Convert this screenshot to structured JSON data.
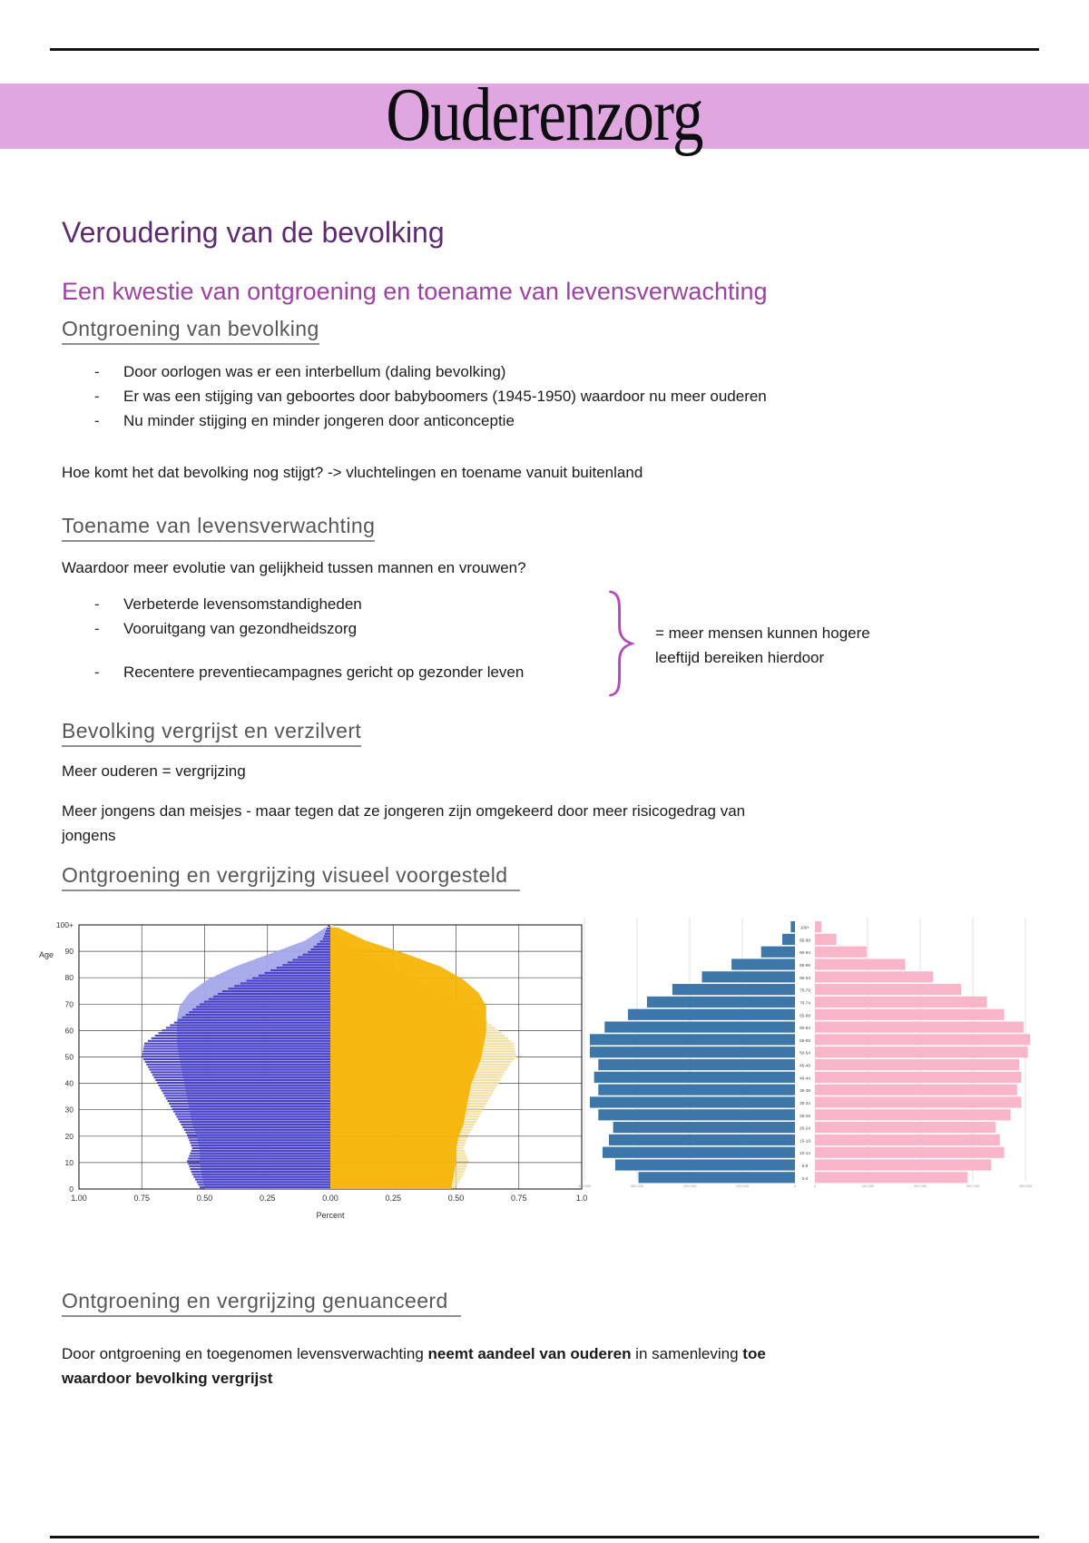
{
  "banner": {
    "title": "Ouderenzorg"
  },
  "headings": {
    "h1": "Veroudering van de bevolking",
    "h2": "Een kwestie van ontgroening en toename van levensverwachting",
    "s1": "Ontgroening van bevolking",
    "s2": "Toename van levensverwachting",
    "s3": "Bevolking vergrijst en verzilvert",
    "s4": "Ontgroening en vergrijzing visueel voorgesteld",
    "s5": "Ontgroening en vergrijzing genuanceerd"
  },
  "section1": {
    "bullets": [
      "Door oorlogen was er een interbellum (daling bevolking)",
      "Er was een stijging van geboortes door babyboomers (1945-1950) waardoor nu meer ouderen",
      "Nu minder stijging en minder jongeren door anticonceptie"
    ],
    "para": "Hoe komt het dat bevolking nog stijgt? -> vluchtelingen en toename vanuit buitenland"
  },
  "section2": {
    "intro": "Waardoor meer evolutie van gelijkheid tussen mannen en vrouwen?",
    "bullets": [
      "Verbeterde levensomstandigheden",
      "Vooruitgang van gezondheidszorg",
      "Recentere preventiecampagnes gericht op gezonder leven"
    ],
    "note_line1": "= meer mensen kunnen hogere",
    "note_line2": "leeftijd bereiken hierdoor",
    "brace_color": "#b44ab8"
  },
  "section3": {
    "para1": "Meer ouderen = vergrijzing",
    "para2_line1": "Meer jongens dan meisjes - maar tegen dat ze jongeren zijn omgekeerd door meer risicogedrag van",
    "para2_line2": "jongens"
  },
  "section5": {
    "segments": [
      {
        "text": "Door ontgroening en toegenomen levensverwachting ",
        "bold": false,
        "break": false
      },
      {
        "text": "neemt aandeel van ouderen",
        "bold": true,
        "break": false
      },
      {
        "text": " in samenleving ",
        "bold": false,
        "break": false
      },
      {
        "text": "toe",
        "bold": true,
        "break": true
      },
      {
        "text": "waardoor bevolking vergrijst",
        "bold": true,
        "break": false
      }
    ]
  },
  "chart_data": [
    {
      "type": "area",
      "subtype": "population-pyramid-overlay",
      "title": "",
      "xlabel": "Percent",
      "ylabel": "Age",
      "x_ticks": [
        "1.00",
        "0.75",
        "0.50",
        "0.25",
        "0.00",
        "0.25",
        "0.50",
        "0.75",
        "1.0"
      ],
      "y_ticks": [
        "0",
        "10",
        "20",
        "30",
        "40",
        "50",
        "60",
        "70",
        "80",
        "90",
        "100+"
      ],
      "xlim": [
        -1.0,
        1.0
      ],
      "grid": true,
      "ages": [
        0,
        5,
        10,
        15,
        20,
        25,
        30,
        35,
        40,
        45,
        50,
        55,
        60,
        65,
        70,
        75,
        80,
        85,
        90,
        95,
        100
      ],
      "series": [
        {
          "name": "male-current-hatched-bars",
          "side": "left",
          "color": "#4a42c7",
          "values": [
            0.52,
            0.55,
            0.57,
            0.55,
            0.57,
            0.6,
            0.63,
            0.66,
            0.69,
            0.72,
            0.75,
            0.74,
            0.67,
            0.59,
            0.52,
            0.43,
            0.31,
            0.19,
            0.09,
            0.03,
            0.01
          ]
        },
        {
          "name": "male-projection-area",
          "side": "left",
          "color": "#a4a7e9",
          "values": [
            0.5,
            0.51,
            0.52,
            0.52,
            0.53,
            0.55,
            0.56,
            0.57,
            0.58,
            0.59,
            0.6,
            0.61,
            0.61,
            0.61,
            0.6,
            0.56,
            0.49,
            0.38,
            0.24,
            0.1,
            0.02
          ]
        },
        {
          "name": "female-projection-area",
          "side": "right",
          "color": "#f6b402",
          "values": [
            0.48,
            0.49,
            0.5,
            0.5,
            0.51,
            0.53,
            0.54,
            0.55,
            0.56,
            0.58,
            0.6,
            0.61,
            0.62,
            0.62,
            0.62,
            0.59,
            0.53,
            0.44,
            0.3,
            0.14,
            0.03
          ]
        },
        {
          "name": "female-current-hatched-bars",
          "side": "right",
          "color": "#f2dfa4",
          "values": [
            0.5,
            0.53,
            0.55,
            0.53,
            0.55,
            0.58,
            0.61,
            0.64,
            0.67,
            0.7,
            0.74,
            0.73,
            0.67,
            0.6,
            0.53,
            0.45,
            0.33,
            0.21,
            0.11,
            0.04,
            0.01
          ]
        }
      ]
    },
    {
      "type": "bar",
      "subtype": "population-pyramid",
      "title": "",
      "grid": true,
      "age_groups": [
        "100+",
        "95-99",
        "90-94",
        "85-89",
        "80-84",
        "75-79",
        "70-74",
        "65-69",
        "60-64",
        "55-59",
        "50-54",
        "45-49",
        "40-44",
        "35-39",
        "30-34",
        "25-29",
        "20-24",
        "15-19",
        "10-14",
        "5-9",
        "0-4"
      ],
      "series": [
        {
          "name": "men",
          "color": "#3d76a8",
          "values": [
            0.02,
            0.06,
            0.16,
            0.3,
            0.44,
            0.58,
            0.7,
            0.79,
            0.9,
            0.97,
            0.97,
            0.93,
            0.95,
            0.93,
            0.97,
            0.93,
            0.86,
            0.88,
            0.91,
            0.85,
            0.74
          ]
        },
        {
          "name": "women",
          "color": "#f8b6c8",
          "values": [
            0.03,
            0.1,
            0.24,
            0.42,
            0.55,
            0.68,
            0.8,
            0.88,
            0.97,
            1.0,
            0.99,
            0.95,
            0.96,
            0.94,
            0.96,
            0.91,
            0.84,
            0.86,
            0.88,
            0.82,
            0.71
          ]
        }
      ],
      "x_tick_labels": [
        "400 000",
        "300 000",
        "200 000",
        "100 000",
        "0",
        "0",
        "100 000",
        "200 000",
        "300 000",
        "400 000"
      ]
    }
  ]
}
